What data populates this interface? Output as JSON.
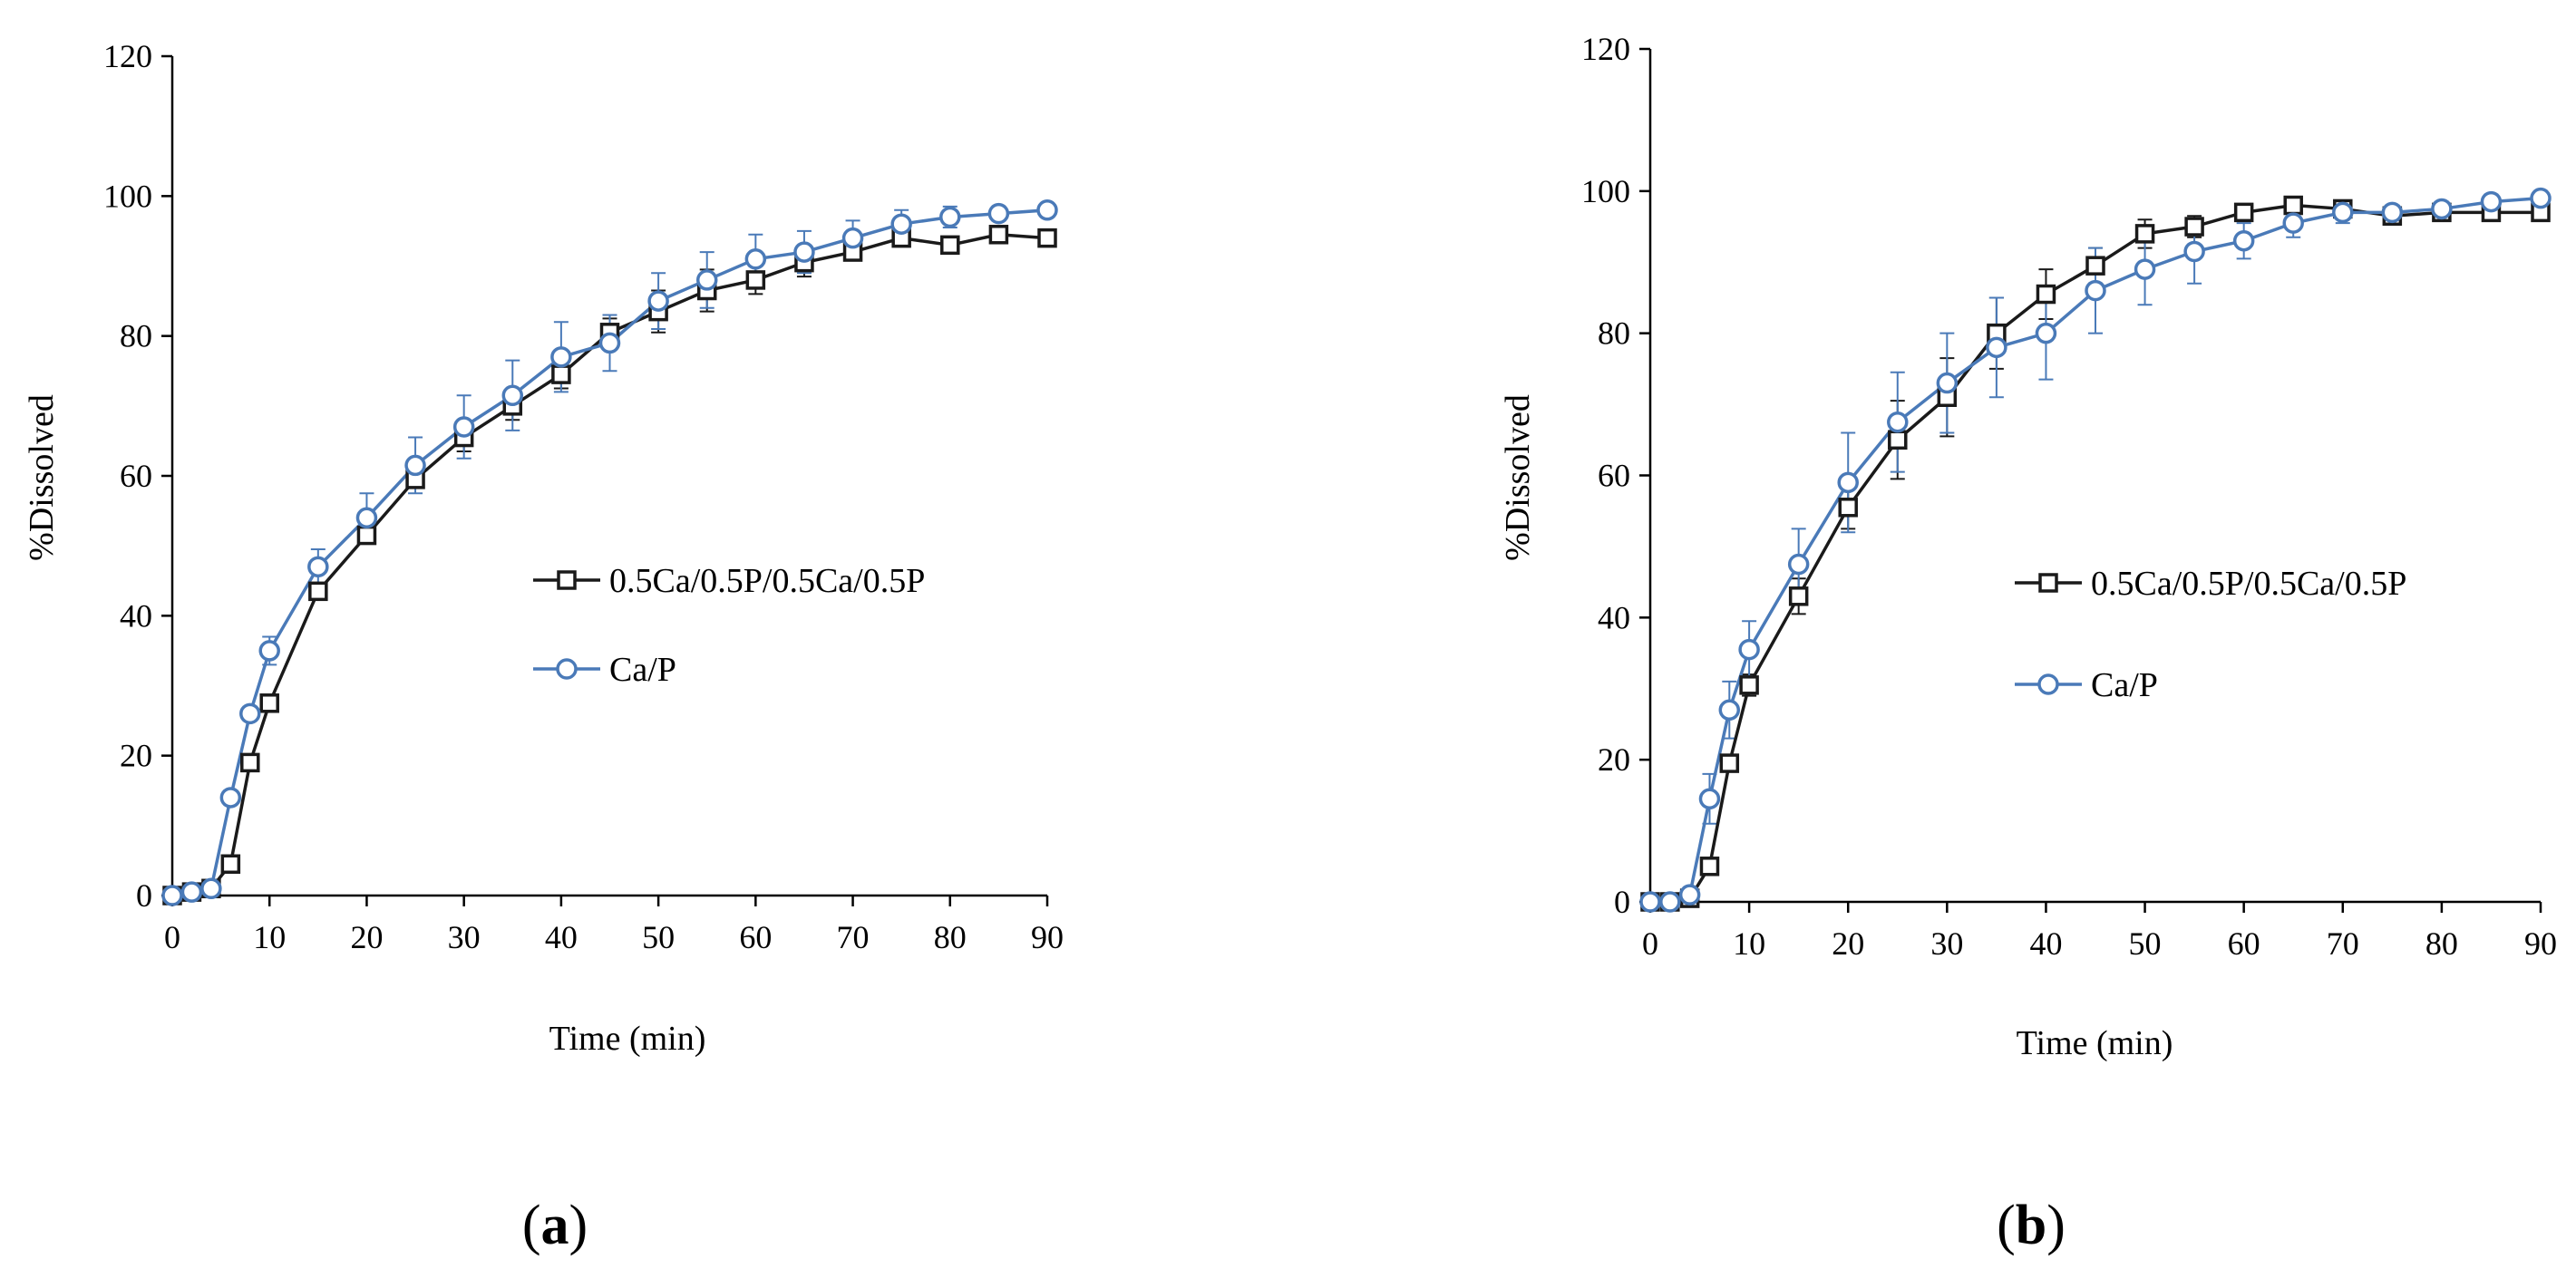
{
  "chart_data": [
    {
      "type": "line",
      "panel_label_open": "(",
      "panel_label_letter": "a",
      "panel_label_close": ")",
      "xlabel": "Time (min)",
      "ylabel": "%Dissolved",
      "xlim": [
        0,
        90
      ],
      "ylim": [
        0,
        120
      ],
      "xticks": [
        0,
        10,
        20,
        30,
        40,
        50,
        60,
        70,
        80,
        90
      ],
      "yticks": [
        0,
        20,
        40,
        60,
        80,
        100,
        120
      ],
      "x": [
        0,
        2,
        4,
        6,
        8,
        10,
        15,
        20,
        25,
        30,
        35,
        40,
        45,
        50,
        55,
        60,
        65,
        70,
        75,
        80,
        85,
        90
      ],
      "series": [
        {
          "name": "0.5Ca/0.5P/0.5Ca/0.5P",
          "marker": "square",
          "color": "#1a1a1a",
          "values": [
            0,
            0.5,
            1,
            4.5,
            19,
            27.5,
            43.5,
            51.5,
            59.5,
            65.5,
            70,
            74.5,
            80.5,
            83.5,
            86.5,
            88,
            90.5,
            92,
            94,
            93,
            94.5,
            94
          ],
          "errors": [
            0,
            0,
            0,
            0,
            0,
            1,
            1,
            1,
            1,
            2,
            2,
            2,
            2,
            3,
            3,
            2,
            2,
            1,
            1,
            1,
            0.5,
            0.5
          ]
        },
        {
          "name": "Ca/P",
          "marker": "circle",
          "color": "#4a7ab8",
          "values": [
            0,
            0.5,
            1,
            14,
            26,
            35,
            47,
            54,
            61.5,
            67,
            71.5,
            77,
            79,
            85,
            88,
            91,
            92,
            94,
            96,
            97,
            97.5,
            98
          ],
          "errors": [
            0,
            0,
            0.5,
            1,
            1,
            2,
            2.5,
            3.5,
            4,
            4.5,
            5,
            5,
            4,
            4,
            4,
            3.5,
            3,
            2.5,
            2,
            1.5,
            1,
            1
          ]
        }
      ]
    },
    {
      "type": "line",
      "panel_label_open": "(",
      "panel_label_letter": "b",
      "panel_label_close": ")",
      "xlabel": "Time (min)",
      "ylabel": "%Dissolved",
      "xlim": [
        0,
        90
      ],
      "ylim": [
        0,
        120
      ],
      "xticks": [
        0,
        10,
        20,
        30,
        40,
        50,
        60,
        70,
        80,
        90
      ],
      "yticks": [
        0,
        20,
        40,
        60,
        80,
        100,
        120
      ],
      "x": [
        0,
        2,
        4,
        6,
        8,
        10,
        15,
        20,
        25,
        30,
        35,
        40,
        45,
        50,
        55,
        60,
        65,
        70,
        75,
        80,
        85,
        90
      ],
      "series": [
        {
          "name": "0.5Ca/0.5P/0.5Ca/0.5P",
          "marker": "square",
          "color": "#1a1a1a",
          "values": [
            0,
            0,
            0.5,
            5,
            19.5,
            30.5,
            43,
            55.5,
            65,
            71,
            80,
            85.5,
            89.5,
            94,
            95,
            97,
            98,
            97.5,
            96.5,
            97,
            97,
            97
          ],
          "errors": [
            0,
            0,
            0,
            0.5,
            1,
            1.5,
            2.5,
            3,
            5.5,
            5.5,
            5,
            3.5,
            2.5,
            2,
            1.5,
            1,
            1,
            1,
            0.5,
            0.5,
            0.5,
            0.5
          ]
        },
        {
          "name": "Ca/P",
          "marker": "circle",
          "color": "#4a7ab8",
          "values": [
            0,
            0,
            1,
            14.5,
            27,
            35.5,
            47.5,
            59,
            67.5,
            73,
            78,
            80,
            86,
            89,
            91.5,
            93,
            95.5,
            97,
            97,
            97.5,
            98.5,
            99
          ],
          "errors": [
            0,
            0,
            0.5,
            3.5,
            4,
            4,
            5,
            7,
            7,
            7,
            7,
            6.5,
            6,
            5,
            4.5,
            2.5,
            2,
            1.5,
            1,
            1,
            1,
            1
          ]
        }
      ]
    }
  ]
}
